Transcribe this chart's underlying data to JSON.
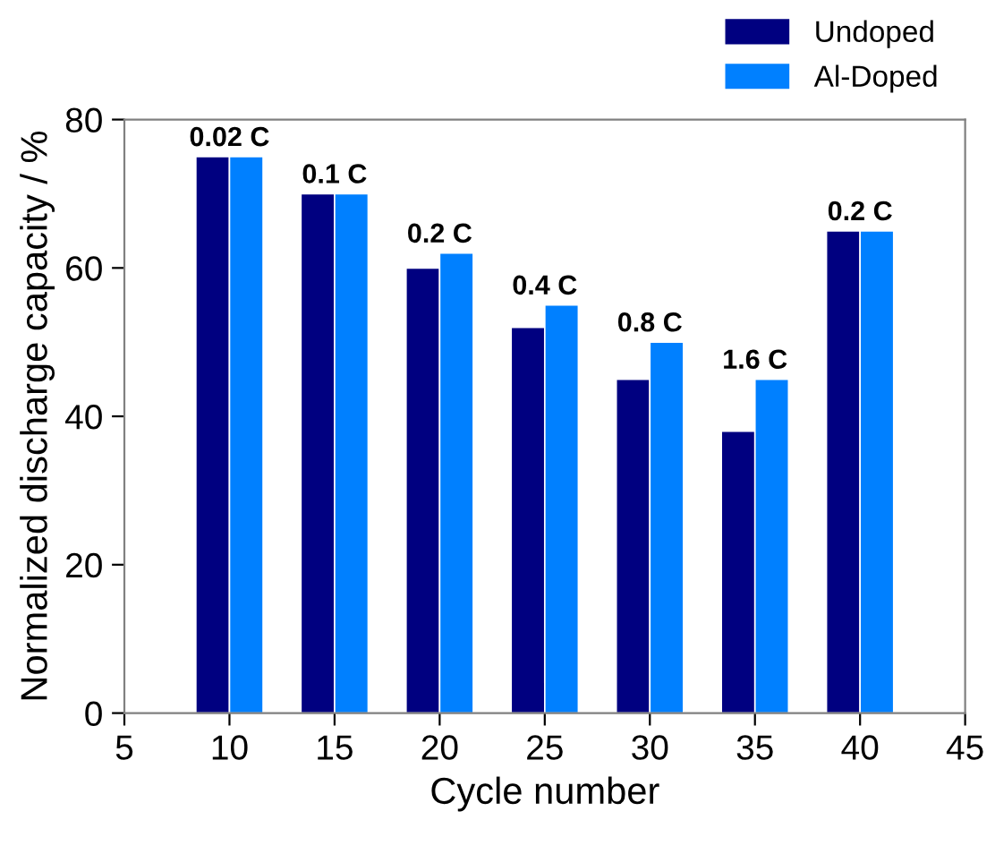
{
  "chart_data": {
    "type": "bar",
    "xlabel": "Cycle number",
    "ylabel": "Normalized discharge capacity / %",
    "x": [
      10,
      15,
      20,
      25,
      30,
      35,
      40
    ],
    "series": [
      {
        "name": "Undoped",
        "color": "#000080",
        "values": [
          75,
          70,
          60,
          52,
          45,
          38,
          65
        ]
      },
      {
        "name": "Al-Doped",
        "color": "#0080ff",
        "values": [
          75,
          70,
          62,
          55,
          50,
          45,
          65
        ]
      }
    ],
    "xlim": [
      5,
      45
    ],
    "xticks": [
      5,
      10,
      15,
      20,
      25,
      30,
      35,
      40,
      45
    ],
    "ylim": [
      0,
      80
    ],
    "yticks": [
      0,
      20,
      40,
      60,
      80
    ],
    "annotations": [
      {
        "text": "0.02 C",
        "x": 10,
        "y": 75
      },
      {
        "text": "0.1 C",
        "x": 15,
        "y": 70
      },
      {
        "text": "0.2 C",
        "x": 20,
        "y": 62
      },
      {
        "text": "0.4 C",
        "x": 25,
        "y": 55
      },
      {
        "text": "0.8 C",
        "x": 30,
        "y": 50
      },
      {
        "text": "1.6 C",
        "x": 35,
        "y": 45
      },
      {
        "text": "0.2 C",
        "x": 40,
        "y": 65
      }
    ],
    "grid": false,
    "legend": "top right"
  }
}
